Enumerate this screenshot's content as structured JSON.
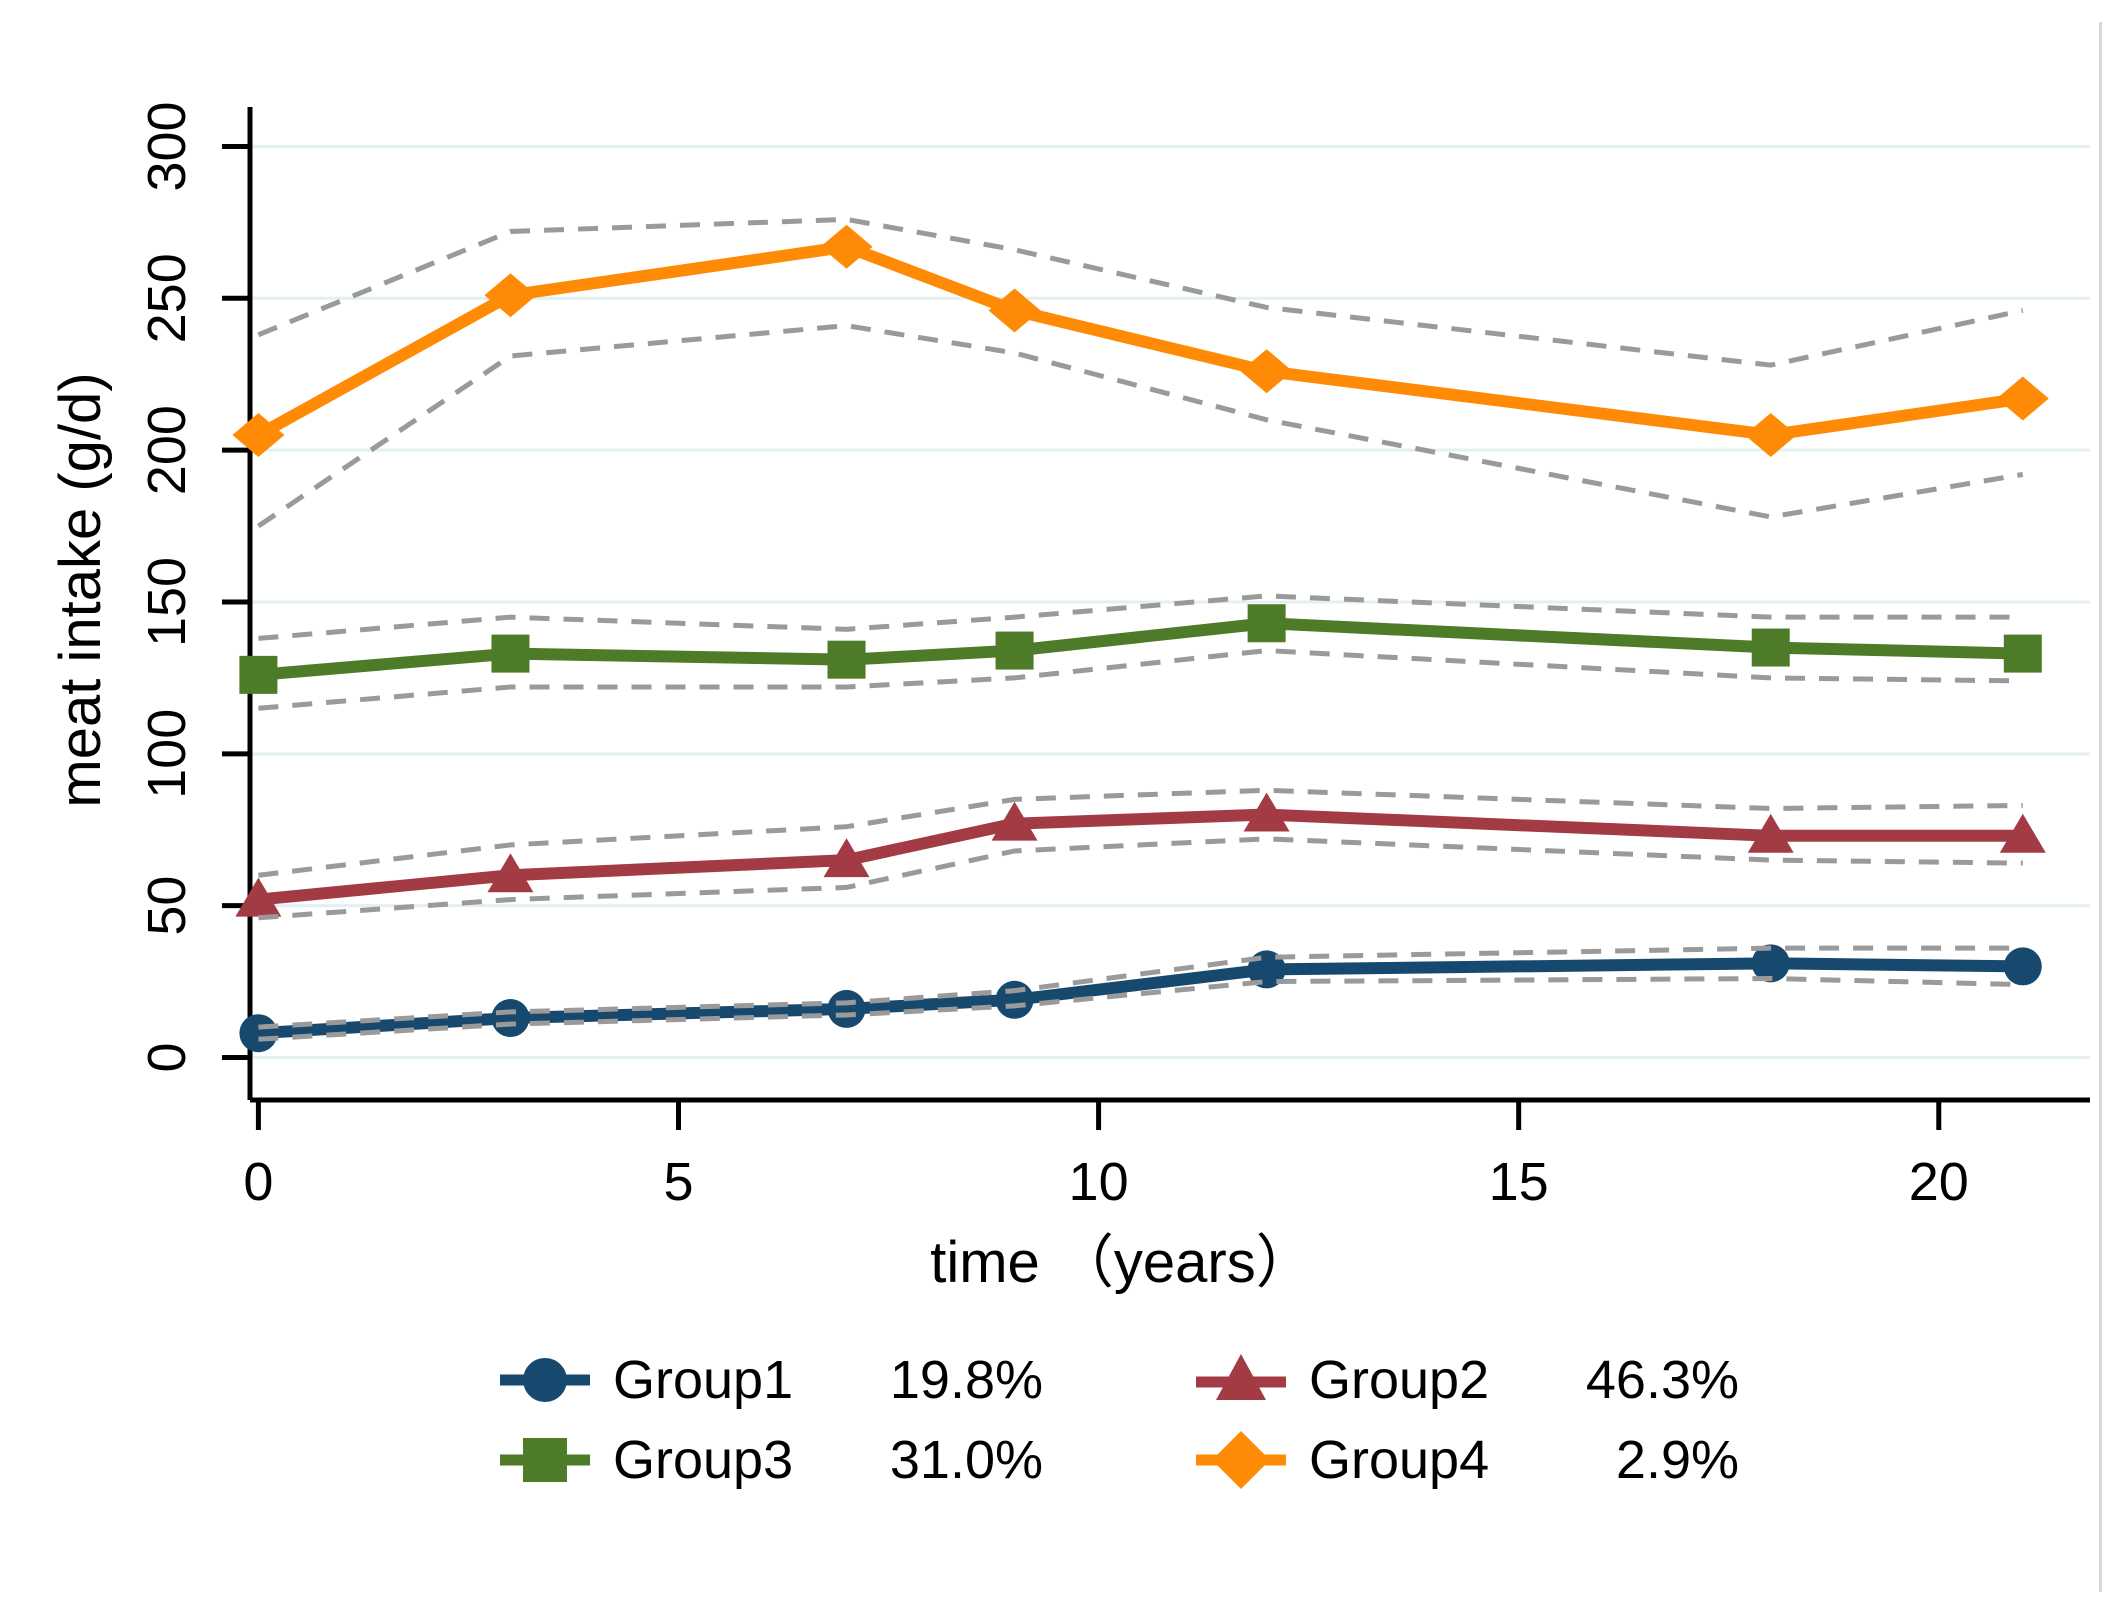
{
  "figure": {
    "background": "#FFFFFF",
    "right_edge_line_color": "#D8D8D8"
  },
  "chart_data": {
    "type": "line",
    "title": "",
    "xlabel": "time （years）",
    "ylabel": "meat intake (g/d)",
    "x": [
      0,
      3,
      7,
      9,
      12,
      18,
      21
    ],
    "xticks": [
      0,
      5,
      10,
      15,
      20
    ],
    "yticks": [
      0,
      50,
      100,
      150,
      200,
      250,
      300
    ],
    "xlim": [
      -0.1,
      21.8
    ],
    "ylim": [
      -14,
      313
    ],
    "grid": "horizontal-only",
    "grid_color": "#E3F0F1",
    "axis_color": "#000000",
    "ci_color": "#9A9A9A",
    "ci_style": "dashed",
    "legend_position": "below-center",
    "series": [
      {
        "name": "Group1",
        "pct": "19.8%",
        "color": "#17496E",
        "marker": "circle",
        "values": [
          8,
          13,
          16,
          19,
          29,
          31,
          30
        ],
        "ci_upper": [
          10,
          15,
          18,
          22,
          33,
          36,
          36
        ],
        "ci_lower": [
          6,
          11,
          14,
          17,
          25,
          26,
          24
        ]
      },
      {
        "name": "Group2",
        "pct": "46.3%",
        "color": "#A33B45",
        "marker": "triangle",
        "values": [
          52,
          60,
          65,
          77,
          80,
          73,
          73
        ],
        "ci_upper": [
          60,
          70,
          76,
          85,
          88,
          82,
          83
        ],
        "ci_lower": [
          46,
          52,
          56,
          68,
          72,
          65,
          64
        ]
      },
      {
        "name": "Group3",
        "pct": "31.0%",
        "color": "#4E7B27",
        "marker": "square",
        "values": [
          126,
          133,
          131,
          134,
          143,
          135,
          133
        ],
        "ci_upper": [
          138,
          145,
          141,
          145,
          152,
          145,
          145
        ],
        "ci_lower": [
          115,
          122,
          122,
          125,
          134,
          125,
          124
        ]
      },
      {
        "name": "Group4",
        "pct": "2.9%",
        "color": "#FF8A06",
        "marker": "diamond",
        "values": [
          205,
          251,
          267,
          246,
          226,
          205,
          217
        ],
        "ci_upper": [
          238,
          272,
          276,
          266,
          247,
          228,
          246
        ],
        "ci_lower": [
          175,
          231,
          241,
          232,
          210,
          178,
          192
        ]
      }
    ]
  }
}
